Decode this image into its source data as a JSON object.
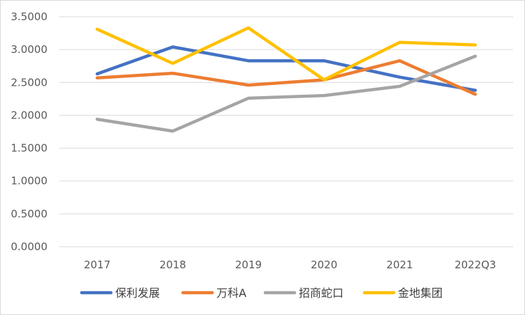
{
  "chart_data": {
    "type": "line",
    "title": "",
    "xlabel": "",
    "ylabel": "",
    "categories": [
      "2017",
      "2018",
      "2019",
      "2020",
      "2021",
      "2022Q3"
    ],
    "ylim": [
      0,
      3.5
    ],
    "yticks": [
      "0.0000",
      "0.5000",
      "1.0000",
      "1.5000",
      "2.0000",
      "2.5000",
      "3.0000",
      "3.5000"
    ],
    "grid": true,
    "legend_position": "bottom",
    "series": [
      {
        "name": "保利发展",
        "color": "#4472c4",
        "values": [
          2.63,
          3.04,
          2.83,
          2.83,
          2.58,
          2.38
        ]
      },
      {
        "name": "万科A",
        "color": "#ed7d31",
        "values": [
          2.57,
          2.64,
          2.46,
          2.54,
          2.83,
          2.32
        ]
      },
      {
        "name": "招商蛇口",
        "color": "#a5a5a5",
        "values": [
          1.94,
          1.76,
          2.26,
          2.3,
          2.44,
          2.9
        ]
      },
      {
        "name": "金地集团",
        "color": "#ffc000",
        "values": [
          3.31,
          2.79,
          3.33,
          2.54,
          3.11,
          3.07
        ]
      }
    ]
  }
}
